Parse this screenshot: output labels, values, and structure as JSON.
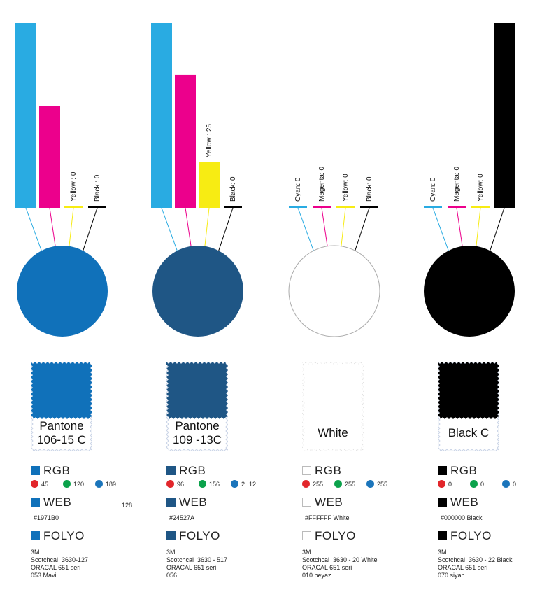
{
  "chart_data": [
    {
      "type": "bar",
      "categories": [
        "Cyan",
        "Magenta",
        "Yellow",
        "Black"
      ],
      "values": [
        100,
        55,
        0,
        0
      ],
      "colors": [
        "#29abe2",
        "#ec008c",
        "#f7ec13",
        "#000000"
      ],
      "labels": [
        "",
        "",
        "Yellow : 0",
        "Black : 0"
      ],
      "circle_color": "#1071ba",
      "circle_outline": false
    },
    {
      "type": "bar",
      "categories": [
        "Cyan",
        "Magenta",
        "Yellow",
        "Black"
      ],
      "values": [
        100,
        72,
        25,
        0
      ],
      "colors": [
        "#29abe2",
        "#ec008c",
        "#f7ec13",
        "#000000"
      ],
      "labels": [
        "",
        "",
        "Yellow : 25",
        "Black: 0"
      ],
      "circle_color": "#1f5685",
      "circle_outline": false
    },
    {
      "type": "bar",
      "categories": [
        "Cyan",
        "Magenta",
        "Yellow",
        "Black"
      ],
      "values": [
        0,
        0,
        0,
        0
      ],
      "colors": [
        "#29abe2",
        "#ec008c",
        "#f7ec13",
        "#000000"
      ],
      "labels": [
        "Cyan: 0",
        "Magenta: 0",
        "Yellow: 0",
        "Black: 0"
      ],
      "circle_color": "#ffffff",
      "circle_outline": true
    },
    {
      "type": "bar",
      "categories": [
        "Cyan",
        "Magenta",
        "Yellow",
        "Black"
      ],
      "values": [
        0,
        0,
        0,
        100
      ],
      "colors": [
        "#29abe2",
        "#ec008c",
        "#f7ec13",
        "#000000"
      ],
      "labels": [
        "Cyan: 0",
        "Magenta: 0",
        "Yellow: 0",
        ""
      ],
      "circle_color": "#000000",
      "circle_outline": false
    }
  ],
  "swatches": [
    {
      "name_line1": "Pantone",
      "name_line2": "106-15 C",
      "color": "#1071ba",
      "outline": false,
      "rgb_title": "RGB",
      "rgb": [
        "45",
        "120",
        "189"
      ],
      "rgb_extra": "128",
      "web_title": "WEB",
      "web_value": "#1971B0",
      "folyo_title": "FOLYO",
      "folyo_text": "3M\nScotchcal  3630-127\nORACAL 651 seri\n053 Mavi"
    },
    {
      "name_line1": "Pantone",
      "name_line2": "109 -13C",
      "color": "#1f5685",
      "outline": false,
      "rgb_title": "RGB",
      "rgb": [
        "96",
        "156",
        "2"
      ],
      "rgb_extra": "12",
      "web_title": "WEB",
      "web_value": "#24527A",
      "folyo_title": "FOLYO",
      "folyo_text": "3M\nScotchcal  3630 - 517\nORACAL 651 seri\n056"
    },
    {
      "name_line1": "",
      "name_line2": "White",
      "color": "#ffffff",
      "outline": true,
      "rgb_title": "RGB",
      "rgb": [
        "255",
        "255",
        "255"
      ],
      "rgb_extra": "",
      "web_title": "WEB",
      "web_value": "#FFFFFF  White",
      "folyo_title": "FOLYO",
      "folyo_text": "3M\nScotchcal  3630 - 20 White\nORACAL 651 seri\n010 beyaz"
    },
    {
      "name_line1": "",
      "name_line2": "Black C",
      "color": "#000000",
      "outline": false,
      "rgb_title": "RGB",
      "rgb": [
        "0",
        "0",
        "0"
      ],
      "rgb_extra": "",
      "web_title": "WEB",
      "web_value": "#000000  Black",
      "folyo_title": "FOLYO",
      "folyo_text": "3M\nScotchcal  3630 - 22 Black\nORACAL 651 seri\n070 siyah"
    }
  ],
  "dot_colors": [
    "#e2262b",
    "#0ba24b",
    "#1b75bb"
  ]
}
